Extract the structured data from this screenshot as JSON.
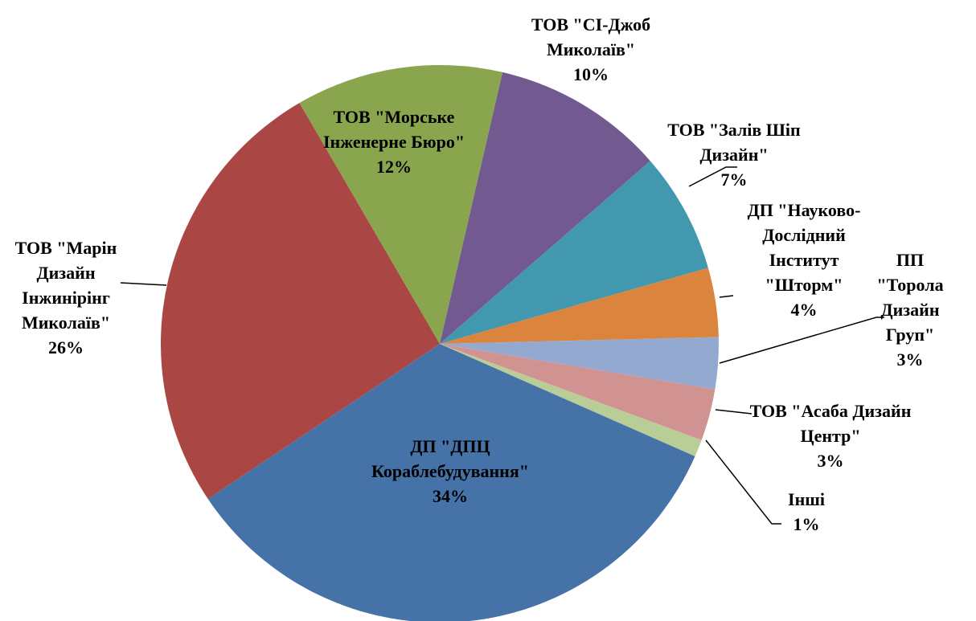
{
  "chart_data": {
    "type": "pie",
    "categories": [
      "ТОВ \"СІ-Джоб Миколаїв\"",
      "ТОВ \"Залів Шіп Дизайн\"",
      "ДП \"Науково-Дослідний Інститут \"Шторм\"",
      "ПП \"Торола Дизайн Груп\"",
      "ТОВ \"Асаба Дизайн Центр\"",
      "Інші",
      "ДП \"ДПЦ Кораблебудування\"",
      "ТОВ \"Марін Дизайн Інжинірінг Миколаїв\"",
      "ТОВ \"Морське Інженерне Бюро\""
    ],
    "values": [
      10,
      7,
      4,
      3,
      3,
      1,
      34,
      26,
      12
    ],
    "value_labels": [
      "10%",
      "7%",
      "4%",
      "3%",
      "3%",
      "1%",
      "34%",
      "26%",
      "12%"
    ],
    "colors": [
      "#725990",
      "#4198af",
      "#db843d",
      "#93a9cf",
      "#d19392",
      "#b9cd96",
      "#4572a7",
      "#aa4643",
      "#89a54e"
    ]
  }
}
